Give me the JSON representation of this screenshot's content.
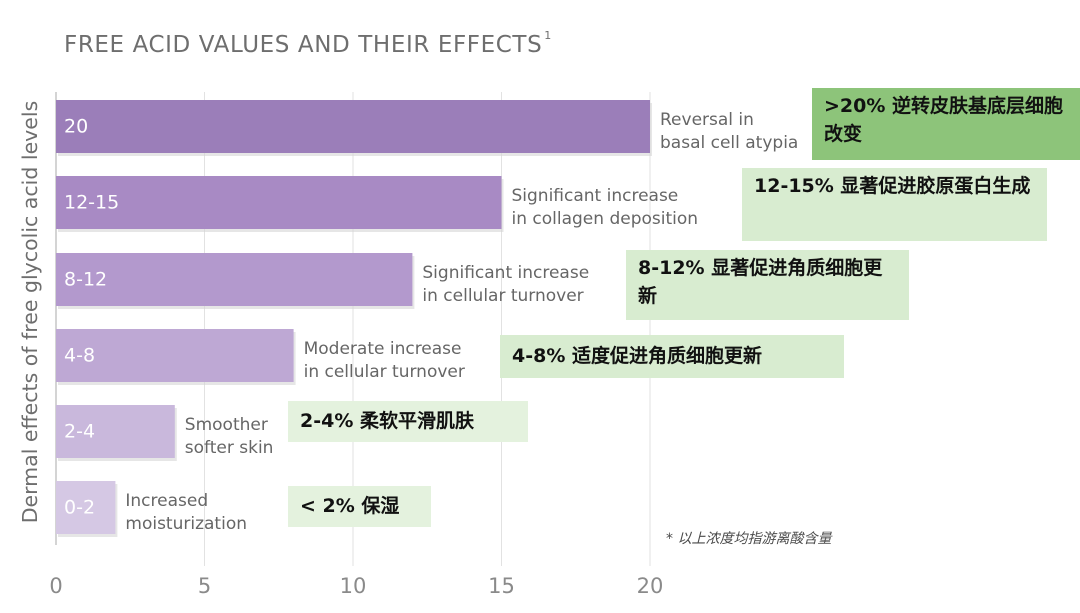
{
  "title": "FREE ACID VALUES AND THEIR EFFECTS",
  "title_footnote": "1",
  "chart_data": {
    "type": "bar",
    "orientation": "horizontal",
    "ylabel": "Dermal effects of free glycolic acid levels",
    "xlim": [
      0,
      20
    ],
    "xticks": [
      "0",
      "5",
      "10",
      "15",
      "20"
    ],
    "bars": [
      {
        "label": "20",
        "value": 20,
        "color": "#9b7eb9",
        "effect": [
          "Reversal in",
          "basal cell atypia"
        ]
      },
      {
        "label": "12-15",
        "value": 15,
        "color": "#a88ac4",
        "effect": [
          "Significant increase",
          "in collagen deposition"
        ]
      },
      {
        "label": "8-12",
        "value": 12,
        "color": "#b399cd",
        "effect": [
          "Significant increase",
          "in cellular turnover"
        ]
      },
      {
        "label": "4-8",
        "value": 8,
        "color": "#bea8d4",
        "effect": [
          "Moderate increase",
          "in cellular turnover"
        ]
      },
      {
        "label": "2-4",
        "value": 4,
        "color": "#c9b8dc",
        "effect": [
          "Smoother",
          "softer skin"
        ]
      },
      {
        "label": "0-2",
        "value": 2,
        "color": "#d5c8e4",
        "effect": [
          "Increased",
          "moisturization"
        ]
      }
    ]
  },
  "annotations": [
    {
      "text": ">20% 逆转皮肤基底层细胞改变",
      "bg": "#8dc47a"
    },
    {
      "text": "12-15% 显著促进胶原蛋白生成",
      "bg": "#d8ecd0"
    },
    {
      "text": "8-12% 显著促进角质细胞更新",
      "bg": "#d8ecd0"
    },
    {
      "text": "4-8% 适度促进角质细胞更新",
      "bg": "#d8ecd0"
    },
    {
      "text": "2-4% 柔软平滑肌肤",
      "bg": "#e4f2de"
    },
    {
      "text": "< 2% 保湿",
      "bg": "#e4f2de"
    }
  ],
  "note": "* 以上浓度均指游离酸含量"
}
